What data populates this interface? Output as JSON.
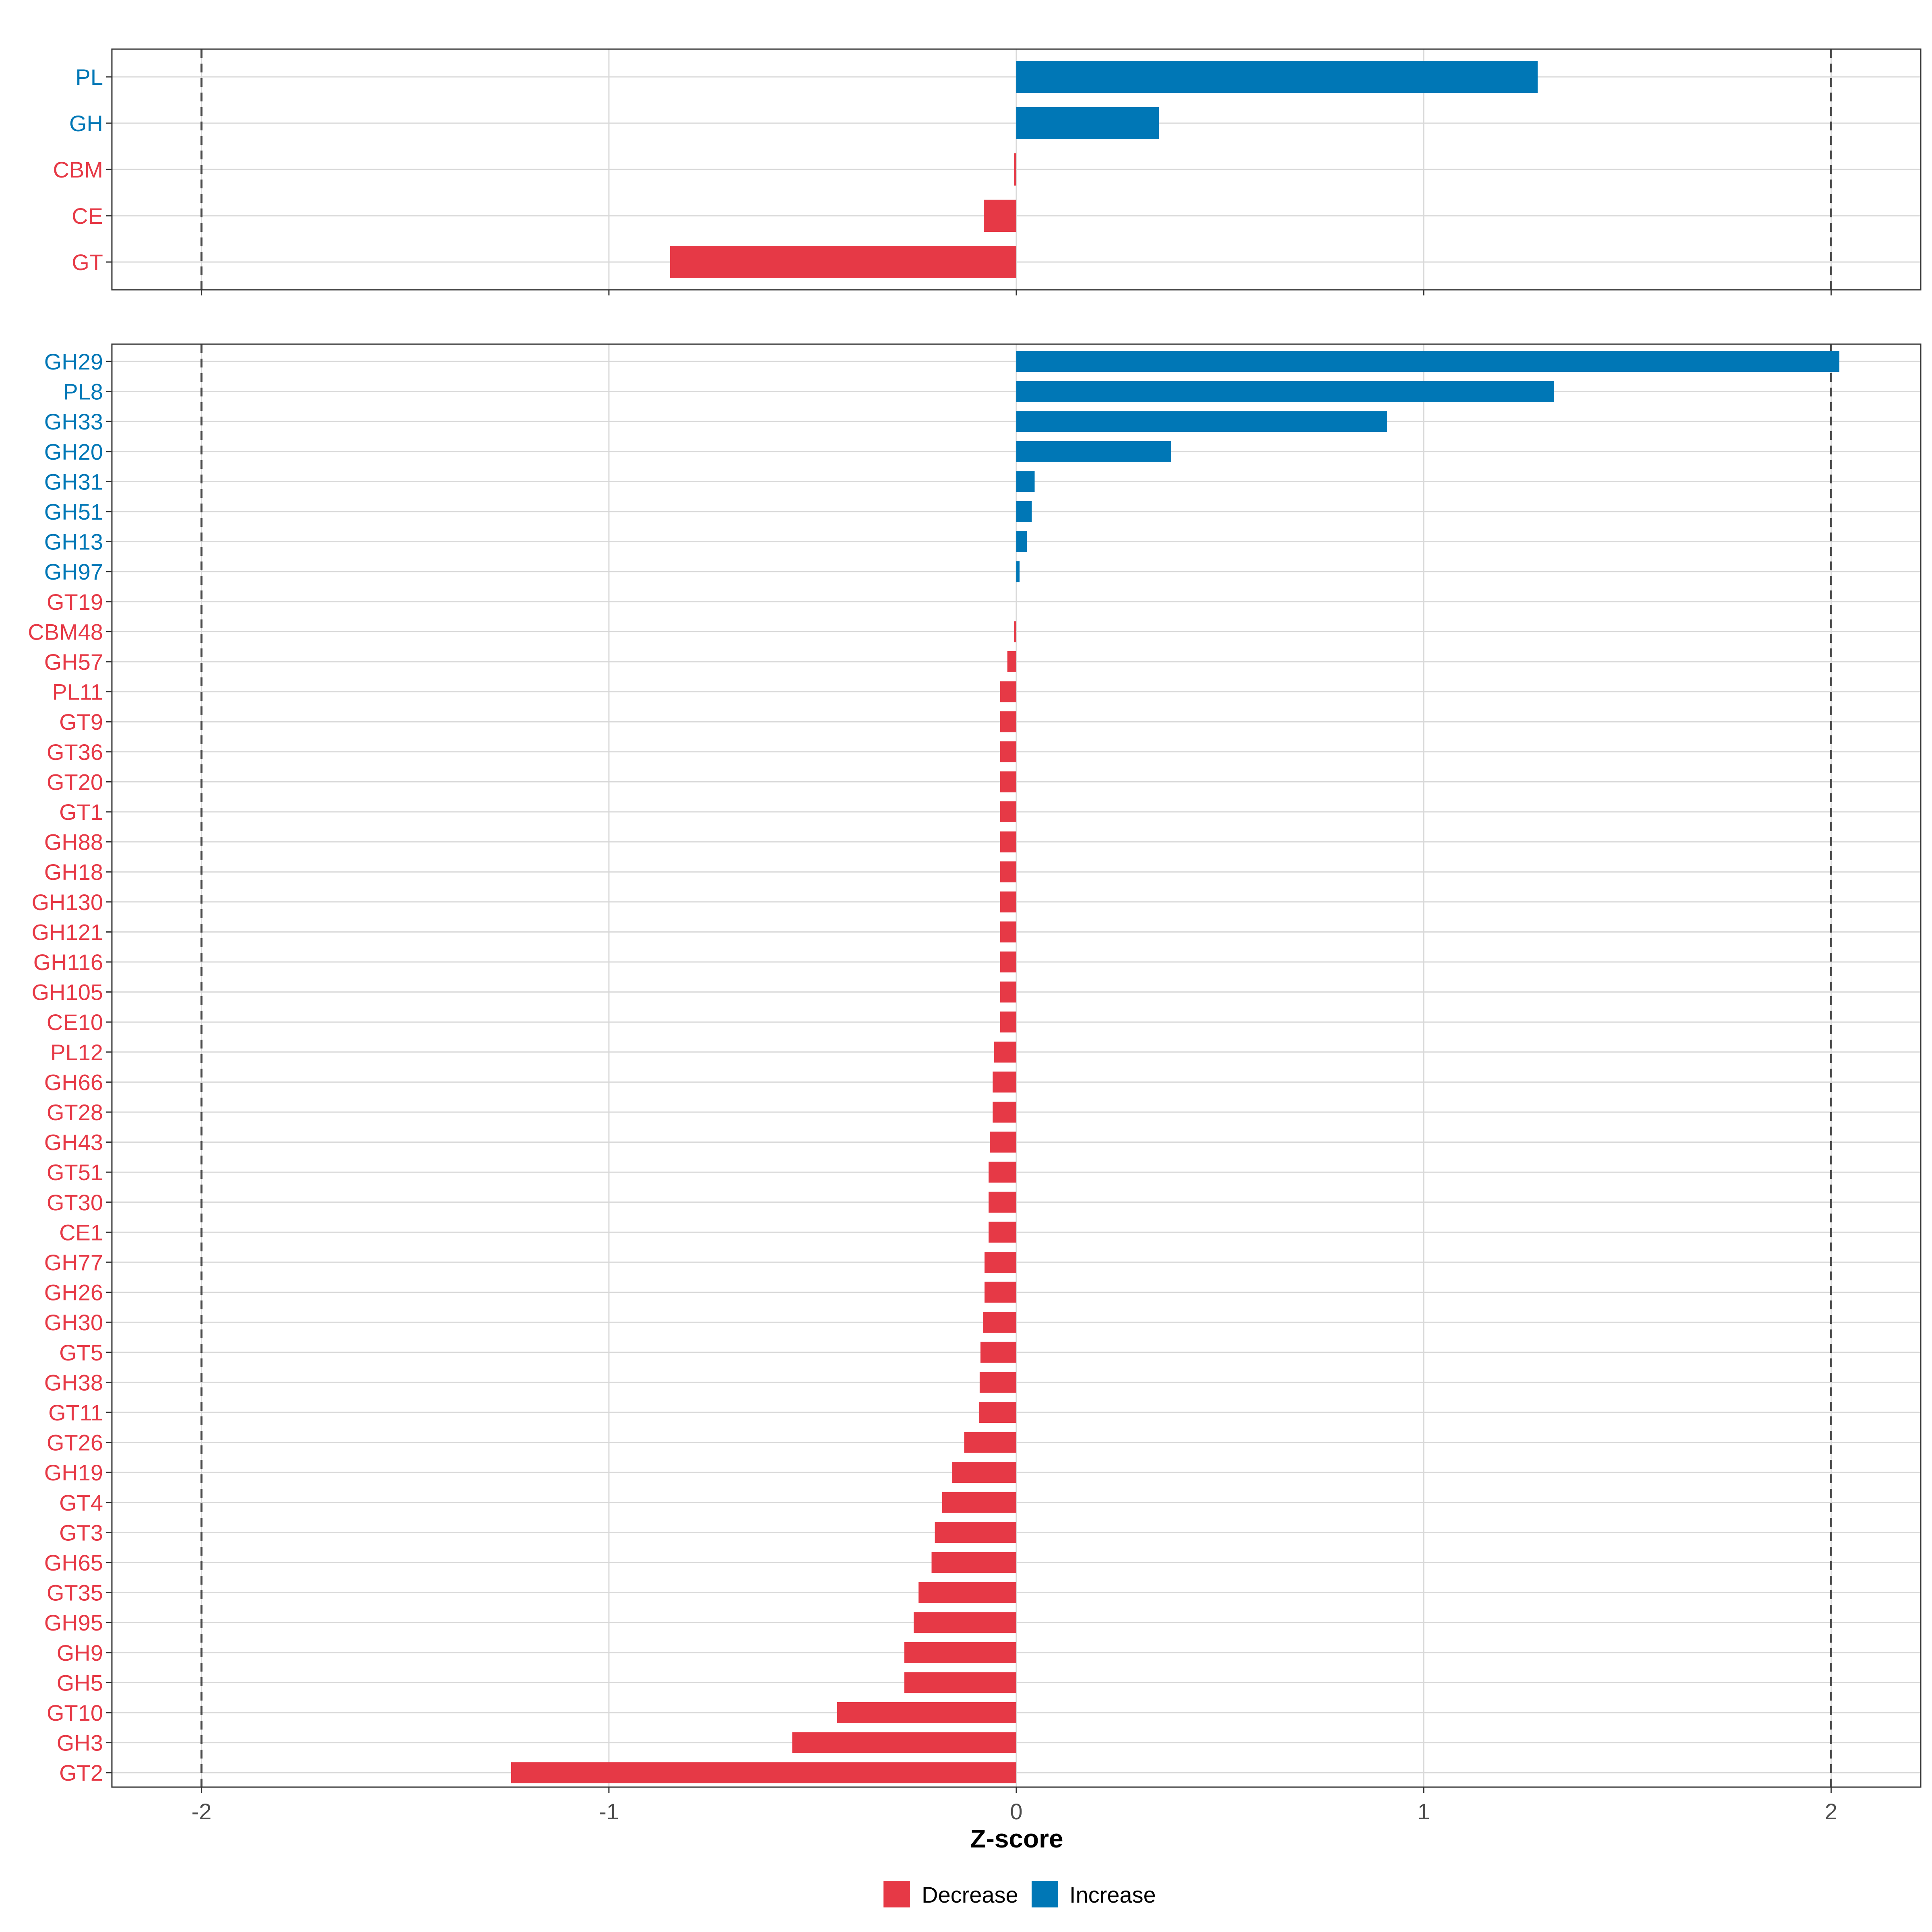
{
  "colors": {
    "decrease": "#E63946",
    "increase": "#0077B6",
    "grid": "#D9D9D9",
    "axis_text": "#4D4D4D",
    "frame": "#333333",
    "dashed": "#4D4D4D"
  },
  "chart_data": [
    {
      "type": "bar",
      "orientation": "horizontal",
      "panel": "top",
      "xlim": [
        -2.22,
        2.22
      ],
      "ticks": [
        -2,
        -1,
        0,
        1,
        2
      ],
      "reference_lines": [
        -2,
        2
      ],
      "categories": [
        "PL",
        "GH",
        "CBM",
        "CE",
        "GT"
      ],
      "values": [
        1.28,
        0.35,
        -0.005,
        -0.08,
        -0.85
      ],
      "direction": [
        "Increase",
        "Increase",
        "Decrease",
        "Decrease",
        "Decrease"
      ]
    },
    {
      "type": "bar",
      "orientation": "horizontal",
      "panel": "bottom",
      "xlim": [
        -2.22,
        2.22
      ],
      "ticks": [
        -2,
        -1,
        0,
        1,
        2
      ],
      "tick_labels": [
        "-2",
        "-1",
        "0",
        "1",
        "2"
      ],
      "reference_lines": [
        -2,
        2
      ],
      "xlabel": "Z-score",
      "categories": [
        "GH29",
        "PL8",
        "GH33",
        "GH20",
        "GH31",
        "GH51",
        "GH13",
        "GH97",
        "GT19",
        "CBM48",
        "GH57",
        "PL11",
        "GT9",
        "GT36",
        "GT20",
        "GT1",
        "GH88",
        "GH18",
        "GH130",
        "GH121",
        "GH116",
        "GH105",
        "CE10",
        "PL12",
        "GH66",
        "GT28",
        "GH43",
        "GT51",
        "GT30",
        "CE1",
        "GH77",
        "GH26",
        "GH30",
        "GT5",
        "GH38",
        "GT11",
        "GT26",
        "GH19",
        "GT4",
        "GT3",
        "GH65",
        "GT35",
        "GH95",
        "GH9",
        "GH5",
        "GT10",
        "GH3",
        "GT2"
      ],
      "values": [
        2.02,
        1.32,
        0.91,
        0.38,
        0.045,
        0.038,
        0.026,
        0.008,
        0.0,
        -0.005,
        -0.022,
        -0.04,
        -0.04,
        -0.04,
        -0.04,
        -0.04,
        -0.04,
        -0.04,
        -0.04,
        -0.04,
        -0.04,
        -0.04,
        -0.04,
        -0.055,
        -0.058,
        -0.058,
        -0.065,
        -0.068,
        -0.068,
        -0.068,
        -0.078,
        -0.078,
        -0.082,
        -0.088,
        -0.09,
        -0.092,
        -0.128,
        -0.158,
        -0.182,
        -0.2,
        -0.208,
        -0.24,
        -0.252,
        -0.275,
        -0.275,
        -0.44,
        -0.55,
        -1.24
      ],
      "direction": [
        "Increase",
        "Increase",
        "Increase",
        "Increase",
        "Increase",
        "Increase",
        "Increase",
        "Increase",
        "Decrease",
        "Decrease",
        "Decrease",
        "Decrease",
        "Decrease",
        "Decrease",
        "Decrease",
        "Decrease",
        "Decrease",
        "Decrease",
        "Decrease",
        "Decrease",
        "Decrease",
        "Decrease",
        "Decrease",
        "Decrease",
        "Decrease",
        "Decrease",
        "Decrease",
        "Decrease",
        "Decrease",
        "Decrease",
        "Decrease",
        "Decrease",
        "Decrease",
        "Decrease",
        "Decrease",
        "Decrease",
        "Decrease",
        "Decrease",
        "Decrease",
        "Decrease",
        "Decrease",
        "Decrease",
        "Decrease",
        "Decrease",
        "Decrease",
        "Decrease",
        "Decrease",
        "Decrease"
      ]
    }
  ],
  "legend": {
    "position": "bottom",
    "items": [
      {
        "label": "Decrease",
        "color_key": "decrease"
      },
      {
        "label": "Increase",
        "color_key": "increase"
      }
    ]
  }
}
